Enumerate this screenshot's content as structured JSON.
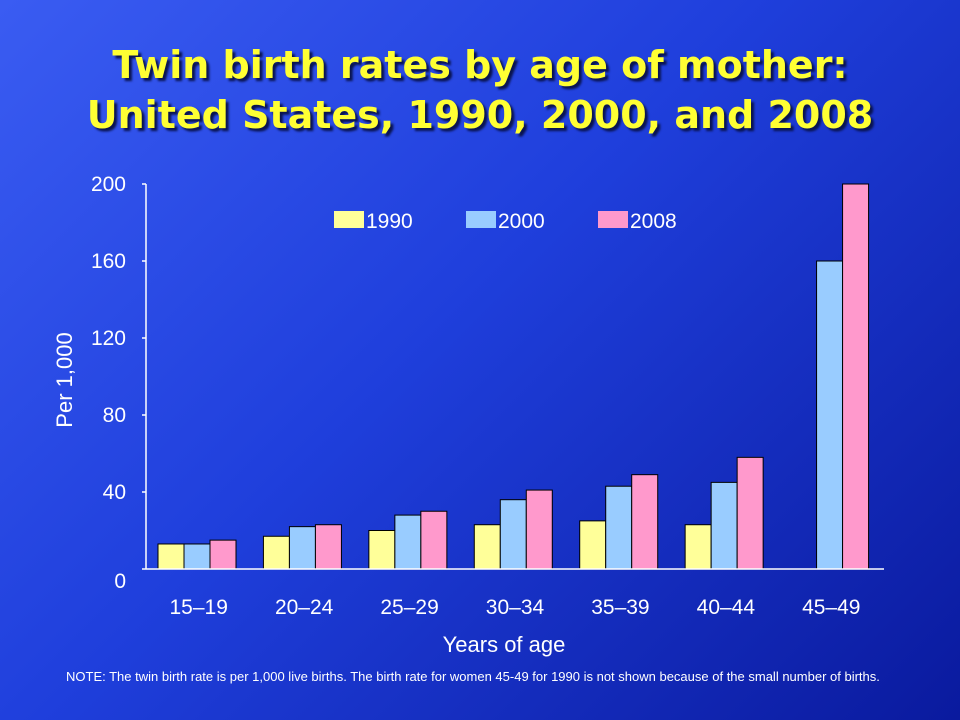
{
  "title_line1": "Twin birth rates by age of mother:",
  "title_line2": "United States, 1990, 2000, and 2008",
  "note": "NOTE:  The twin birth rate is per 1,000 live births. The birth rate for women 45-49 for 1990 is not shown because of the small number of births.",
  "chart_data": {
    "type": "bar",
    "categories": [
      "15–19",
      "20–24",
      "25–29",
      "30–34",
      "35–39",
      "40–44",
      "45–49"
    ],
    "series": [
      {
        "name": "1990",
        "color": "#ffff99",
        "values": [
          13,
          17,
          20,
          23,
          25,
          23,
          null
        ]
      },
      {
        "name": "2000",
        "color": "#99ccff",
        "values": [
          13,
          22,
          28,
          36,
          43,
          45,
          160
        ]
      },
      {
        "name": "2008",
        "color": "#ff99cc",
        "values": [
          15,
          23,
          30,
          41,
          49,
          58,
          200
        ]
      }
    ],
    "xlabel": "Years of age",
    "ylabel": "Per 1,000",
    "ylim": [
      0,
      200
    ],
    "yticks": [
      0,
      40,
      80,
      120,
      160,
      200
    ],
    "grid": false,
    "legend_position": "top"
  }
}
